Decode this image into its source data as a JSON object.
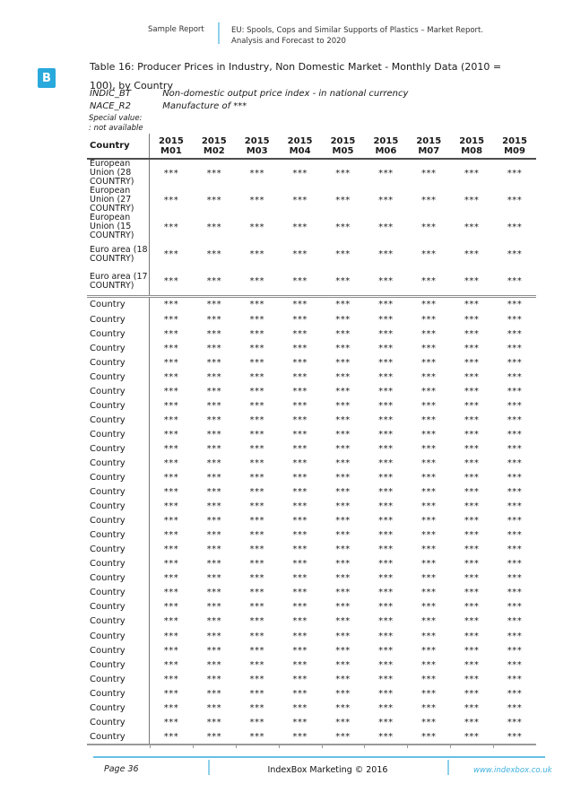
{
  "colors": {
    "accent": "#29A9DC",
    "divider": "#8FD0EC",
    "footer_line": "#66C0E6",
    "link": "#3FB0DE"
  },
  "header": {
    "logo_letter": "B",
    "report_type": "Sample Report",
    "title_line1": "EU: Spools, Cops and Similar Supports of Plastics – Market Report.",
    "title_line2": "Analysis and Forecast to 2020"
  },
  "table_title": {
    "line1": "Table 16: Producer Prices in Industry, Non Domestic Market - Monthly Data (2010 =",
    "line2": "100), by Country"
  },
  "meta": {
    "indic_label": "INDIC_BT",
    "indic_value": "Non-domestic output price index - in national currency",
    "nace_label": "NACE_R2",
    "nace_value": "Manufacture of ***",
    "special_value_label": "Special value:",
    "special_value_note": ": not available"
  },
  "table": {
    "country_header": "Country",
    "columns": [
      {
        "year": "2015",
        "month": "M01"
      },
      {
        "year": "2015",
        "month": "M02"
      },
      {
        "year": "2015",
        "month": "M03"
      },
      {
        "year": "2015",
        "month": "M04"
      },
      {
        "year": "2015",
        "month": "M05"
      },
      {
        "year": "2015",
        "month": "M06"
      },
      {
        "year": "2015",
        "month": "M07"
      },
      {
        "year": "2015",
        "month": "M08"
      },
      {
        "year": "2015",
        "month": "M09"
      }
    ],
    "aggregate_rows": [
      {
        "name": "European Union (28 COUNTRY)",
        "values": [
          "***",
          "***",
          "***",
          "***",
          "***",
          "***",
          "***",
          "***",
          "***"
        ]
      },
      {
        "name": "European Union (27 COUNTRY)",
        "values": [
          "***",
          "***",
          "***",
          "***",
          "***",
          "***",
          "***",
          "***",
          "***"
        ]
      },
      {
        "name": "European Union (15 COUNTRY)",
        "values": [
          "***",
          "***",
          "***",
          "***",
          "***",
          "***",
          "***",
          "***",
          "***"
        ]
      },
      {
        "name": "Euro area (18 COUNTRY)",
        "values": [
          "***",
          "***",
          "***",
          "***",
          "***",
          "***",
          "***",
          "***",
          "***"
        ]
      },
      {
        "name": "Euro area (17 COUNTRY)",
        "values": [
          "***",
          "***",
          "***",
          "***",
          "***",
          "***",
          "***",
          "***",
          "***"
        ]
      }
    ],
    "country_rows": [
      {
        "name": "Country",
        "values": [
          "***",
          "***",
          "***",
          "***",
          "***",
          "***",
          "***",
          "***",
          "***"
        ]
      },
      {
        "name": "Country",
        "values": [
          "***",
          "***",
          "***",
          "***",
          "***",
          "***",
          "***",
          "***",
          "***"
        ]
      },
      {
        "name": "Country",
        "values": [
          "***",
          "***",
          "***",
          "***",
          "***",
          "***",
          "***",
          "***",
          "***"
        ]
      },
      {
        "name": "Country",
        "values": [
          "***",
          "***",
          "***",
          "***",
          "***",
          "***",
          "***",
          "***",
          "***"
        ]
      },
      {
        "name": "Country",
        "values": [
          "***",
          "***",
          "***",
          "***",
          "***",
          "***",
          "***",
          "***",
          "***"
        ]
      },
      {
        "name": "Country",
        "values": [
          "***",
          "***",
          "***",
          "***",
          "***",
          "***",
          "***",
          "***",
          "***"
        ]
      },
      {
        "name": "Country",
        "values": [
          "***",
          "***",
          "***",
          "***",
          "***",
          "***",
          "***",
          "***",
          "***"
        ]
      },
      {
        "name": "Country",
        "values": [
          "***",
          "***",
          "***",
          "***",
          "***",
          "***",
          "***",
          "***",
          "***"
        ]
      },
      {
        "name": "Country",
        "values": [
          "***",
          "***",
          "***",
          "***",
          "***",
          "***",
          "***",
          "***",
          "***"
        ]
      },
      {
        "name": "Country",
        "values": [
          "***",
          "***",
          "***",
          "***",
          "***",
          "***",
          "***",
          "***",
          "***"
        ]
      },
      {
        "name": "Country",
        "values": [
          "***",
          "***",
          "***",
          "***",
          "***",
          "***",
          "***",
          "***",
          "***"
        ]
      },
      {
        "name": "Country",
        "values": [
          "***",
          "***",
          "***",
          "***",
          "***",
          "***",
          "***",
          "***",
          "***"
        ]
      },
      {
        "name": "Country",
        "values": [
          "***",
          "***",
          "***",
          "***",
          "***",
          "***",
          "***",
          "***",
          "***"
        ]
      },
      {
        "name": "Country",
        "values": [
          "***",
          "***",
          "***",
          "***",
          "***",
          "***",
          "***",
          "***",
          "***"
        ]
      },
      {
        "name": "Country",
        "values": [
          "***",
          "***",
          "***",
          "***",
          "***",
          "***",
          "***",
          "***",
          "***"
        ]
      },
      {
        "name": "Country",
        "values": [
          "***",
          "***",
          "***",
          "***",
          "***",
          "***",
          "***",
          "***",
          "***"
        ]
      },
      {
        "name": "Country",
        "values": [
          "***",
          "***",
          "***",
          "***",
          "***",
          "***",
          "***",
          "***",
          "***"
        ]
      },
      {
        "name": "Country",
        "values": [
          "***",
          "***",
          "***",
          "***",
          "***",
          "***",
          "***",
          "***",
          "***"
        ]
      },
      {
        "name": "Country",
        "values": [
          "***",
          "***",
          "***",
          "***",
          "***",
          "***",
          "***",
          "***",
          "***"
        ]
      },
      {
        "name": "Country",
        "values": [
          "***",
          "***",
          "***",
          "***",
          "***",
          "***",
          "***",
          "***",
          "***"
        ]
      },
      {
        "name": "Country",
        "values": [
          "***",
          "***",
          "***",
          "***",
          "***",
          "***",
          "***",
          "***",
          "***"
        ]
      },
      {
        "name": "Country",
        "values": [
          "***",
          "***",
          "***",
          "***",
          "***",
          "***",
          "***",
          "***",
          "***"
        ]
      },
      {
        "name": "Country",
        "values": [
          "***",
          "***",
          "***",
          "***",
          "***",
          "***",
          "***",
          "***",
          "***"
        ]
      },
      {
        "name": "Country",
        "values": [
          "***",
          "***",
          "***",
          "***",
          "***",
          "***",
          "***",
          "***",
          "***"
        ]
      },
      {
        "name": "Country",
        "values": [
          "***",
          "***",
          "***",
          "***",
          "***",
          "***",
          "***",
          "***",
          "***"
        ]
      },
      {
        "name": "Country",
        "values": [
          "***",
          "***",
          "***",
          "***",
          "***",
          "***",
          "***",
          "***",
          "***"
        ]
      },
      {
        "name": "Country",
        "values": [
          "***",
          "***",
          "***",
          "***",
          "***",
          "***",
          "***",
          "***",
          "***"
        ]
      },
      {
        "name": "Country",
        "values": [
          "***",
          "***",
          "***",
          "***",
          "***",
          "***",
          "***",
          "***",
          "***"
        ]
      },
      {
        "name": "Country",
        "values": [
          "***",
          "***",
          "***",
          "***",
          "***",
          "***",
          "***",
          "***",
          "***"
        ]
      },
      {
        "name": "Country",
        "values": [
          "***",
          "***",
          "***",
          "***",
          "***",
          "***",
          "***",
          "***",
          "***"
        ]
      },
      {
        "name": "Country",
        "values": [
          "***",
          "***",
          "***",
          "***",
          "***",
          "***",
          "***",
          "***",
          "***"
        ]
      }
    ]
  },
  "footer": {
    "page_label": "Page 36",
    "center_text": "IndexBox Marketing © 2016",
    "website": "www.indexbox.co.uk"
  }
}
